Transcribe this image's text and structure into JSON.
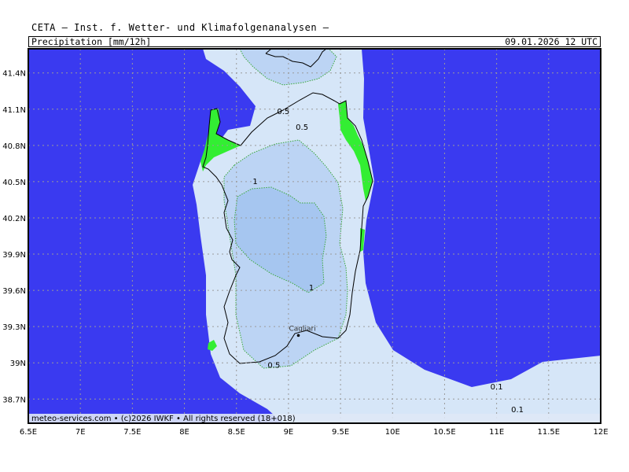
{
  "header": {
    "title": "CETA — Inst. f. Wetter- und Klimafolgenanalysen —",
    "parameter": "Precipitation [mm/12h]",
    "datetime": "09.01.2026 12 UTC"
  },
  "axes": {
    "lon_ticks": [
      "6.5E",
      "7E",
      "7.5E",
      "8E",
      "8.5E",
      "9E",
      "9.5E",
      "10E",
      "10.5E",
      "11E",
      "11.5E",
      "12E"
    ],
    "lat_ticks": [
      "41.4N",
      "41.1N",
      "40.8N",
      "40.5N",
      "40.2N",
      "39.9N",
      "39.6N",
      "39.3N",
      "39N",
      "38.7N"
    ],
    "lon_range": [
      6.5,
      12.0
    ],
    "lat_range": [
      38.5,
      41.6
    ]
  },
  "colors": {
    "ocean_no_precip": "#3a3af0",
    "precip_0_1": "#d6e6f8",
    "precip_0_5": "#bcd4f4",
    "precip_1": "#a6c6f0",
    "no_precip_land": "#33ee33",
    "grid": "#9a9a9a"
  },
  "contour_labels": [
    {
      "text": "0.5",
      "lon": 8.95,
      "lat": 41.06
    },
    {
      "text": "0.5",
      "lon": 9.13,
      "lat": 40.93
    },
    {
      "text": "1",
      "lon": 8.68,
      "lat": 40.48
    },
    {
      "text": "1",
      "lon": 9.22,
      "lat": 39.6
    },
    {
      "text": "0.5",
      "lon": 8.86,
      "lat": 38.96
    },
    {
      "text": "0.1",
      "lon": 11.0,
      "lat": 38.78
    },
    {
      "text": "0.1",
      "lon": 11.2,
      "lat": 38.59
    }
  ],
  "cities": [
    {
      "name": "Cagliari",
      "lon": 9.08,
      "lat": 39.24
    }
  ],
  "footer": "meteo-services.com • (c)2026 IWKF • All rights reserved (18+018)"
}
